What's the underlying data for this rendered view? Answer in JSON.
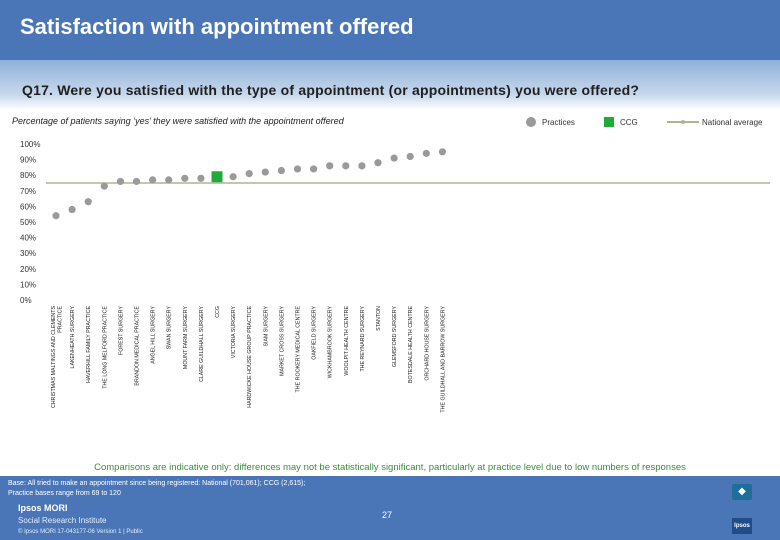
{
  "header": {
    "title": "Satisfaction with appointment offered",
    "question": "Q17. Were you satisfied with the type of appointment (or appointments) you were offered?",
    "subtitle": "Percentage of patients saying ‘yes’ they were satisfied with the appointment offered"
  },
  "legend": {
    "practices": "Practices",
    "ccg": "CCG",
    "national": "National average"
  },
  "colors": {
    "header": "#4a76b8",
    "practice": "#9a9a9a",
    "ccg": "#1faa3a",
    "national": "#b3b394"
  },
  "chart_data": {
    "type": "scatter",
    "categories": [
      "CHRISTMAS MALTINGS AND CLEMENTS PRACTICE",
      "LAKENHEATH SURGERY",
      "HAVERHILL FAMILY PRACTICE",
      "THE LONG MELFORD PRACTICE",
      "FOREST SURGERY",
      "BRANDON MEDICAL PRACTICE",
      "ANGEL HILL SURGERY",
      "SWAN SURGERY",
      "MOUNT FARM SURGERY",
      "CLARE GUILDHALL SURGERY",
      "CCG",
      "VICTORIA SURGERY",
      "HARDWICKE HOUSE GROUP PRACTICE",
      "SIAM SURGERY",
      "MARKET CROSS SURGERY",
      "THE ROOKERY MEDICAL CENTRE",
      "OAKFIELD SURGERY",
      "WICKHAMBROOK SURGERY",
      "WOOLPIT HEALTH CENTRE",
      "THE REYNARD SURGERY",
      "STANTON",
      "GLEMSFORD SURGERY",
      "BOTESDALE HEALTH CENTRE",
      "ORCHARD HOUSE SURGERY",
      "THE GUILDHALL AND BARROW SURGERY"
    ],
    "values": [
      54,
      58,
      63,
      73,
      76,
      76,
      77,
      77,
      78,
      78,
      79,
      79,
      81,
      82,
      83,
      84,
      84,
      86,
      86,
      86,
      88,
      91,
      92,
      94,
      95
    ],
    "ccg_index": 10,
    "national_average": 75,
    "ylim": [
      0,
      100
    ],
    "yticks": [
      "0%",
      "10%",
      "20%",
      "30%",
      "40%",
      "50%",
      "60%",
      "70%",
      "80%",
      "90%",
      "100%"
    ]
  },
  "note": "Comparisons are indicative only: differences may not be statistically significant, particularly at practice level due to low numbers of responses",
  "footer": {
    "base_line1": "Base: All tried to make an appointment since being registered: National (701,061); CCG (2,615);",
    "base_line2": "Practice bases range from 69 to 120",
    "brand": "Ipsos MORI",
    "brand_sub": "Social Research Institute",
    "page": "27",
    "copyright": "© Ipsos MORI     17-043177-06 Version 1 | Public",
    "logo_mark": "Ipsos"
  }
}
